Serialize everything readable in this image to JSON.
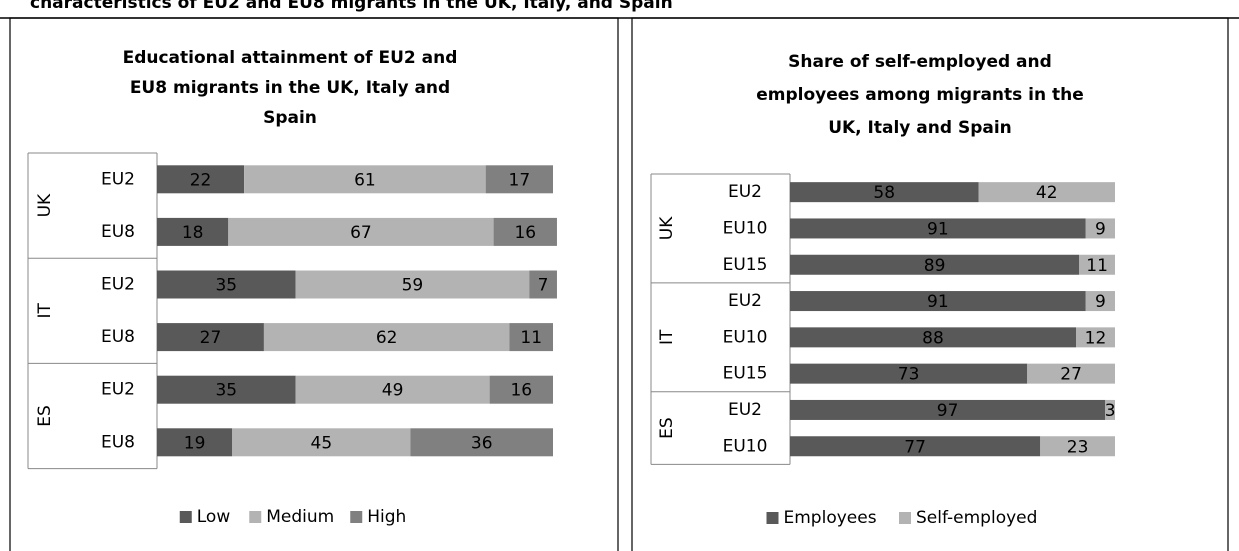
{
  "caption": "characteristics of EU2 and EU8 migrants in the UK, Italy, and Spain",
  "chart_data": [
    {
      "type": "bar",
      "stacked": true,
      "orientation": "horizontal",
      "title": [
        "Educational attainment of EU2 and",
        "EU8 migrants in the UK, Italy and",
        "Spain"
      ],
      "groups": [
        {
          "name": "UK",
          "categories": [
            "EU2",
            "EU8"
          ]
        },
        {
          "name": "IT",
          "categories": [
            "EU2",
            "EU8"
          ]
        },
        {
          "name": "ES",
          "categories": [
            "EU2",
            "EU8"
          ]
        }
      ],
      "series": [
        {
          "name": "Low",
          "color": "#595959",
          "values": [
            22,
            18,
            35,
            27,
            35,
            19
          ]
        },
        {
          "name": "Medium",
          "color": "#b3b3b3",
          "values": [
            61,
            67,
            59,
            62,
            49,
            45
          ]
        },
        {
          "name": "High",
          "color": "#808080",
          "values": [
            17,
            16,
            7,
            11,
            16,
            36
          ]
        }
      ],
      "xlim": [
        0,
        100
      ],
      "legend": "bottom"
    },
    {
      "type": "bar",
      "stacked": true,
      "orientation": "horizontal",
      "title": [
        "Share of self-employed and",
        "employees among migrants in the",
        "UK, Italy and Spain"
      ],
      "groups": [
        {
          "name": "UK",
          "categories": [
            "EU2",
            "EU10",
            "EU15"
          ]
        },
        {
          "name": "IT",
          "categories": [
            "EU2",
            "EU10",
            "EU15"
          ]
        },
        {
          "name": "ES",
          "categories": [
            "EU2",
            "EU10"
          ]
        }
      ],
      "series": [
        {
          "name": "Employees",
          "color": "#595959",
          "values": [
            58,
            91,
            89,
            91,
            88,
            73,
            97,
            77
          ]
        },
        {
          "name": "Self-employed",
          "color": "#b3b3b3",
          "values": [
            42,
            9,
            11,
            9,
            12,
            27,
            3,
            23
          ]
        }
      ],
      "xlim": [
        0,
        100
      ],
      "legend": "bottom"
    }
  ]
}
